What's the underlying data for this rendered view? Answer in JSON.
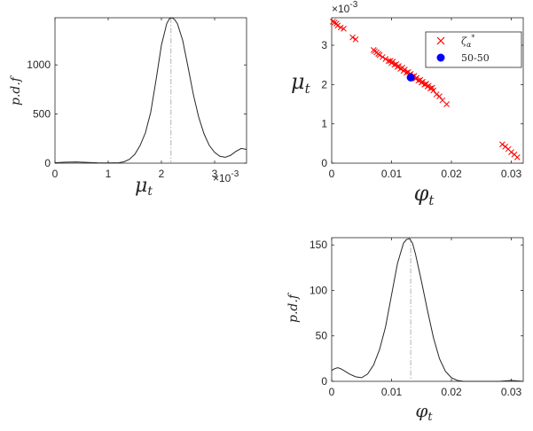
{
  "chart_data": [
    {
      "id": "mu_pdf",
      "type": "line",
      "xlabel": "μ",
      "xlabel_sub": "t",
      "ylabel": "p.d.f",
      "x_exponent_text": "×10",
      "x_exponent_power": "-3",
      "xlim": [
        0,
        3.6
      ],
      "ylim": [
        0,
        1480
      ],
      "xticks": [
        0,
        1,
        2,
        3
      ],
      "xtick_labels": [
        "0",
        "1",
        "2",
        "3"
      ],
      "yticks": [
        0,
        500,
        1000
      ],
      "ytick_labels": [
        "0",
        "500",
        "1000"
      ],
      "grid": false,
      "series": [
        {
          "style": "solid",
          "color": "#262626",
          "x": [
            0,
            0.2,
            0.4,
            0.6,
            0.8,
            1.0,
            1.2,
            1.3,
            1.4,
            1.5,
            1.6,
            1.7,
            1.8,
            1.9,
            2.0,
            2.1,
            2.15,
            2.2,
            2.25,
            2.3,
            2.4,
            2.5,
            2.6,
            2.7,
            2.8,
            2.9,
            3.0,
            3.1,
            3.2,
            3.3,
            3.4,
            3.5,
            3.6
          ],
          "y": [
            5,
            10,
            12,
            8,
            3,
            2,
            5,
            15,
            40,
            90,
            180,
            310,
            520,
            850,
            1200,
            1420,
            1470,
            1480,
            1460,
            1420,
            1250,
            980,
            700,
            470,
            300,
            180,
            110,
            70,
            60,
            80,
            120,
            150,
            140
          ]
        }
      ],
      "vlines": [
        {
          "x": 2.18,
          "style": "dashdot",
          "color": "#a0a0a0"
        }
      ]
    },
    {
      "id": "scatter",
      "type": "scatter",
      "xlabel": "φ",
      "xlabel_sub": "t",
      "ylabel": "μ",
      "ylabel_sub": "t",
      "y_exponent_text": "×10",
      "y_exponent_power": "-3",
      "xlim": [
        0,
        0.032
      ],
      "ylim": [
        0,
        3.7
      ],
      "xticks": [
        0,
        0.01,
        0.02,
        0.03
      ],
      "xtick_labels": [
        "0",
        "0.01",
        "0.02",
        "0.03"
      ],
      "yticks": [
        0,
        1,
        2,
        3
      ],
      "ytick_labels": [
        "0",
        "1",
        "2",
        "3"
      ],
      "legend": {
        "placement": "top-right",
        "entries": [
          {
            "marker": "x",
            "color": "#ff0000",
            "label": "ζ",
            "label_sub": "α",
            "label_sup": "*"
          },
          {
            "marker": "circle",
            "color": "#0000ff",
            "label": "50-50"
          }
        ]
      },
      "series": [
        {
          "marker": "x",
          "color": "#ff0000",
          "points": [
            [
              0.0002,
              3.6
            ],
            [
              0.0005,
              3.58
            ],
            [
              0.0008,
              3.55
            ],
            [
              0.001,
              3.5
            ],
            [
              0.0015,
              3.45
            ],
            [
              0.002,
              3.42
            ],
            [
              0.0035,
              3.2
            ],
            [
              0.004,
              3.15
            ],
            [
              0.007,
              2.88
            ],
            [
              0.0072,
              2.85
            ],
            [
              0.0075,
              2.82
            ],
            [
              0.0078,
              2.78
            ],
            [
              0.008,
              2.75
            ],
            [
              0.0085,
              2.7
            ],
            [
              0.009,
              2.65
            ],
            [
              0.0095,
              2.6
            ],
            [
              0.01,
              2.55
            ],
            [
              0.0105,
              2.5
            ],
            [
              0.011,
              2.45
            ],
            [
              0.0115,
              2.4
            ],
            [
              0.012,
              2.35
            ],
            [
              0.0125,
              2.3
            ],
            [
              0.013,
              2.25
            ],
            [
              0.0135,
              2.2
            ],
            [
              0.014,
              2.15
            ],
            [
              0.0145,
              2.1
            ],
            [
              0.015,
              2.05
            ],
            [
              0.0155,
              2.0
            ],
            [
              0.016,
              1.95
            ],
            [
              0.0165,
              1.9
            ],
            [
              0.017,
              1.85
            ],
            [
              0.0175,
              1.75
            ],
            [
              0.018,
              1.7
            ],
            [
              0.0185,
              1.6
            ],
            [
              0.0192,
              1.5
            ],
            [
              0.0098,
              2.6
            ],
            [
              0.0102,
              2.58
            ],
            [
              0.0108,
              2.52
            ],
            [
              0.0112,
              2.47
            ],
            [
              0.0118,
              2.43
            ],
            [
              0.0122,
              2.38
            ],
            [
              0.0128,
              2.32
            ],
            [
              0.0132,
              2.27
            ],
            [
              0.0138,
              2.22
            ],
            [
              0.0142,
              2.17
            ],
            [
              0.0148,
              2.12
            ],
            [
              0.0152,
              2.07
            ],
            [
              0.0158,
              2.02
            ],
            [
              0.0162,
              1.97
            ],
            [
              0.0168,
              1.92
            ],
            [
              0.0285,
              0.48
            ],
            [
              0.029,
              0.42
            ],
            [
              0.0295,
              0.36
            ],
            [
              0.03,
              0.28
            ],
            [
              0.0305,
              0.22
            ],
            [
              0.031,
              0.15
            ]
          ]
        },
        {
          "marker": "circle",
          "color": "#0000ff",
          "points": [
            [
              0.0132,
              2.18
            ]
          ]
        }
      ]
    },
    {
      "id": "phi_pdf",
      "type": "line",
      "xlabel": "φ",
      "xlabel_sub": "t",
      "ylabel": "p.d.f",
      "xlim": [
        0,
        0.032
      ],
      "ylim": [
        0,
        158
      ],
      "xticks": [
        0,
        0.01,
        0.02,
        0.03
      ],
      "xtick_labels": [
        "0",
        "0.01",
        "0.02",
        "0.03"
      ],
      "yticks": [
        0,
        50,
        100,
        150
      ],
      "ytick_labels": [
        "0",
        "50",
        "100",
        "150"
      ],
      "grid": false,
      "series": [
        {
          "style": "solid",
          "color": "#262626",
          "x": [
            0,
            0.0005,
            0.001,
            0.0015,
            0.002,
            0.003,
            0.004,
            0.005,
            0.006,
            0.007,
            0.008,
            0.009,
            0.01,
            0.011,
            0.012,
            0.0125,
            0.013,
            0.0135,
            0.014,
            0.015,
            0.016,
            0.017,
            0.018,
            0.019,
            0.02,
            0.021,
            0.022,
            0.024,
            0.026,
            0.028,
            0.03,
            0.032
          ],
          "y": [
            12,
            14,
            15,
            14,
            12,
            8,
            5,
            4,
            8,
            18,
            35,
            60,
            95,
            130,
            152,
            156,
            157,
            152,
            140,
            110,
            78,
            48,
            25,
            11,
            4,
            1,
            0,
            0,
            0,
            0,
            1,
            0
          ]
        }
      ],
      "vlines": [
        {
          "x": 0.0132,
          "style": "dashdot",
          "color": "#a0a0a0"
        }
      ]
    }
  ]
}
